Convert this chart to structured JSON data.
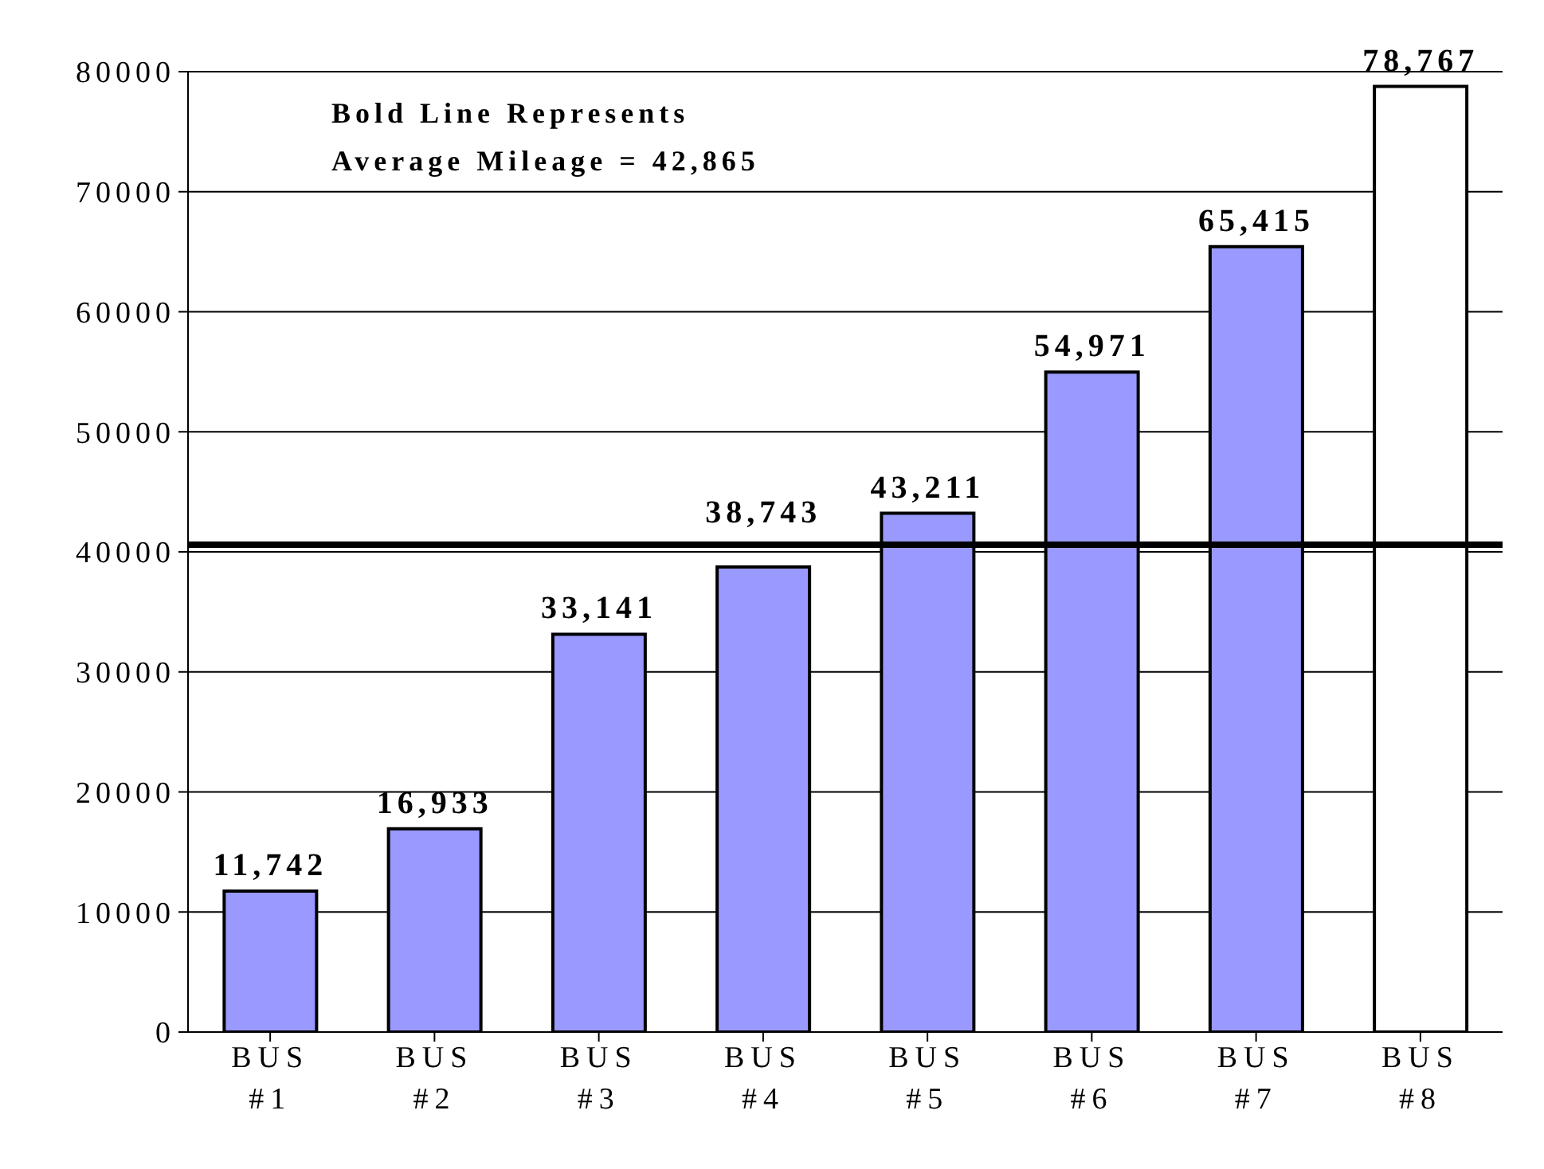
{
  "chart_data": {
    "type": "bar",
    "categories": [
      "BUS #1",
      "BUS #2",
      "BUS #3",
      "BUS #4",
      "BUS #5",
      "BUS #6",
      "BUS #7",
      "BUS #8"
    ],
    "values": [
      11742,
      16933,
      33141,
      38743,
      43211,
      54971,
      65415,
      78767
    ],
    "colors": [
      "#9999ff",
      "#9999ff",
      "#9999ff",
      "#9999ff",
      "#9999ff",
      "#9999ff",
      "#9999ff",
      "#ffffff"
    ],
    "value_labels": [
      "11,742",
      "16,933",
      "33,141",
      "38,743",
      "43,211",
      "54,971",
      "65,415",
      "78,767"
    ],
    "ylim": [
      0,
      80000
    ],
    "yticks": [
      0,
      10000,
      20000,
      30000,
      40000,
      50000,
      60000,
      70000,
      80000
    ],
    "grid": "y",
    "ref_lines": [
      {
        "axis": "y",
        "value": 40600,
        "color": "#000000"
      }
    ],
    "annotations": [
      "Bold Line Represents",
      "Average Mileage = 42,865"
    ]
  }
}
